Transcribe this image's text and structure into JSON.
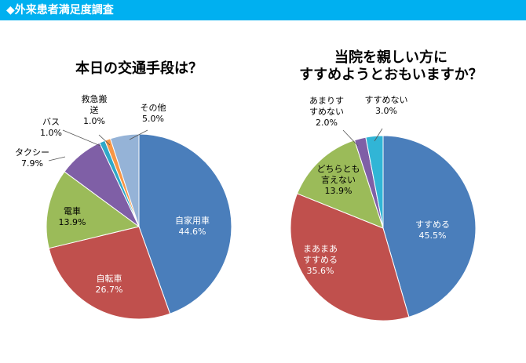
{
  "header": {
    "title": "◆外来患者満足度調査",
    "color": "#00b0f0"
  },
  "chart_data": [
    {
      "type": "pie",
      "title_lines": [
        "本日の交通手段は？"
      ],
      "slices": [
        {
          "label_lines": [
            "自家用車"
          ],
          "value": 44.6,
          "value_text": "44.6%",
          "color": "#4a7ebb"
        },
        {
          "label_lines": [
            "自転車"
          ],
          "value": 26.7,
          "value_text": "26.7%",
          "color": "#c0504d"
        },
        {
          "label_lines": [
            "電車"
          ],
          "value": 13.9,
          "value_text": "13.9%",
          "color": "#9bbb59"
        },
        {
          "label_lines": [
            "タクシー"
          ],
          "value": 7.9,
          "value_text": "7.9%",
          "color": "#7f5fa6"
        },
        {
          "label_lines": [
            "バス"
          ],
          "value": 1.0,
          "value_text": "1.0%",
          "color": "#2fa8c8"
        },
        {
          "label_lines": [
            "救急搬",
            "送"
          ],
          "value": 1.0,
          "value_text": "1.0%",
          "color": "#f79646"
        },
        {
          "label_lines": [
            "その他"
          ],
          "value": 5.0,
          "value_text": "5.0%",
          "color": "#95b3d7"
        }
      ]
    },
    {
      "type": "pie",
      "title_lines": [
        "当院を親しい方に",
        "すすめようとおもいますか？"
      ],
      "slices": [
        {
          "label_lines": [
            "すすめる"
          ],
          "value": 45.5,
          "value_text": "45.5%",
          "color": "#4a7ebb"
        },
        {
          "label_lines": [
            "まあまあ",
            "すすめる"
          ],
          "value": 35.6,
          "value_text": "35.6%",
          "color": "#c0504d"
        },
        {
          "label_lines": [
            "どちらとも",
            "言えない"
          ],
          "value": 13.9,
          "value_text": "13.9%",
          "color": "#9bbb59"
        },
        {
          "label_lines": [
            "あまりす",
            "すめない"
          ],
          "value": 2.0,
          "value_text": "2.0%",
          "color": "#7f5fa6"
        },
        {
          "label_lines": [
            "すすめない"
          ],
          "value": 3.0,
          "value_text": "3.0%",
          "color": "#31b5d6"
        }
      ]
    }
  ]
}
